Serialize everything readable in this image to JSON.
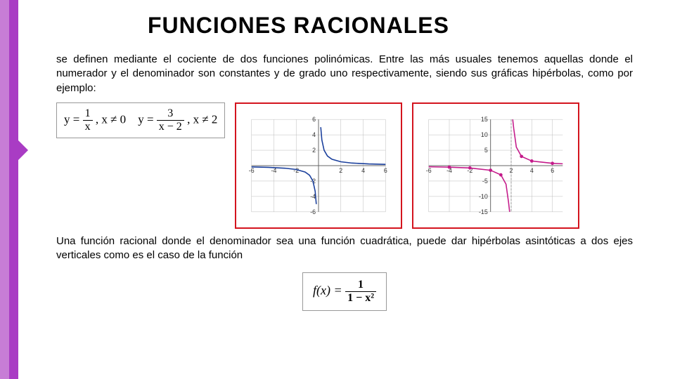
{
  "title": "FUNCIONES  RACIONALES",
  "para1": "se definen mediante el cociente de dos funciones polinómicas. Entre las más usuales tenemos aquellas donde el numerador y el denominador son constantes y de grado uno respectivamente, siendo sus gráficas hipérbolas, como por ejemplo:",
  "para2": "Una función racional donde el denominador sea una función cuadrática, puede dar hipérbolas asintóticas a dos ejes verticales como es el caso de la función",
  "formulas": {
    "f1_lhs": "y =",
    "f1_num": "1",
    "f1_den": "x",
    "f1_cond": ", x ≠ 0",
    "f2_lhs": "y =",
    "f2_num": "3",
    "f2_den": "x − 2",
    "f2_cond": ", x ≠ 2",
    "f3_lhs": "f(x) =",
    "f3_num": "1",
    "f3_den": "1 − x²"
  },
  "chart1": {
    "type": "line",
    "curve_color": "#1a3f9c",
    "frame_color": "#d4141e",
    "axis_color": "#666666",
    "grid_color": "#bbbbbb",
    "background": "#ffffff",
    "xlim": [
      -6,
      6
    ],
    "ylim": [
      -6,
      6
    ],
    "xticks": [
      -6,
      -4,
      -2,
      2,
      4,
      6
    ],
    "yticks": [
      -6,
      -4,
      -2,
      2,
      4,
      6
    ],
    "branch_left_x": [
      -6,
      -4.5,
      -3,
      -2,
      -1.2,
      -0.8,
      -0.5,
      -0.3,
      -0.2
    ],
    "branch_left_y": [
      -0.167,
      -0.222,
      -0.333,
      -0.5,
      -0.833,
      -1.25,
      -2,
      -3.33,
      -5
    ],
    "branch_right_x": [
      0.2,
      0.3,
      0.5,
      0.8,
      1.2,
      2,
      3,
      4.5,
      6
    ],
    "branch_right_y": [
      5,
      3.33,
      2,
      1.25,
      0.833,
      0.5,
      0.333,
      0.222,
      0.167
    ],
    "asymptote_x": 0
  },
  "chart2": {
    "type": "line",
    "curve_color": "#c41a8a",
    "marker_color": "#c41a8a",
    "frame_color": "#d4141e",
    "axis_color": "#666666",
    "grid_color": "#bbbbbb",
    "background": "#ffffff",
    "xlim": [
      -6,
      7
    ],
    "ylim": [
      -15,
      15
    ],
    "xticks": [
      -6,
      -4,
      -2,
      2,
      4,
      6
    ],
    "yticks": [
      -15,
      -10,
      -5,
      5,
      10,
      15
    ],
    "branch_left_x": [
      -6,
      -4,
      -2,
      0,
      1,
      1.5,
      1.75,
      1.85
    ],
    "branch_left_y": [
      -0.375,
      -0.5,
      -0.75,
      -1.5,
      -3,
      -6,
      -12,
      -15
    ],
    "branch_right_x": [
      2.15,
      2.25,
      2.5,
      3,
      4,
      6,
      7
    ],
    "branch_right_y": [
      15,
      12,
      6,
      3,
      1.5,
      0.75,
      0.6
    ],
    "asymptote_x": 2,
    "markers_x": [
      -4,
      -2,
      0,
      1,
      3,
      4,
      6
    ],
    "markers_y": [
      -0.5,
      -0.75,
      -1.5,
      -3,
      3,
      1.5,
      0.75
    ]
  }
}
